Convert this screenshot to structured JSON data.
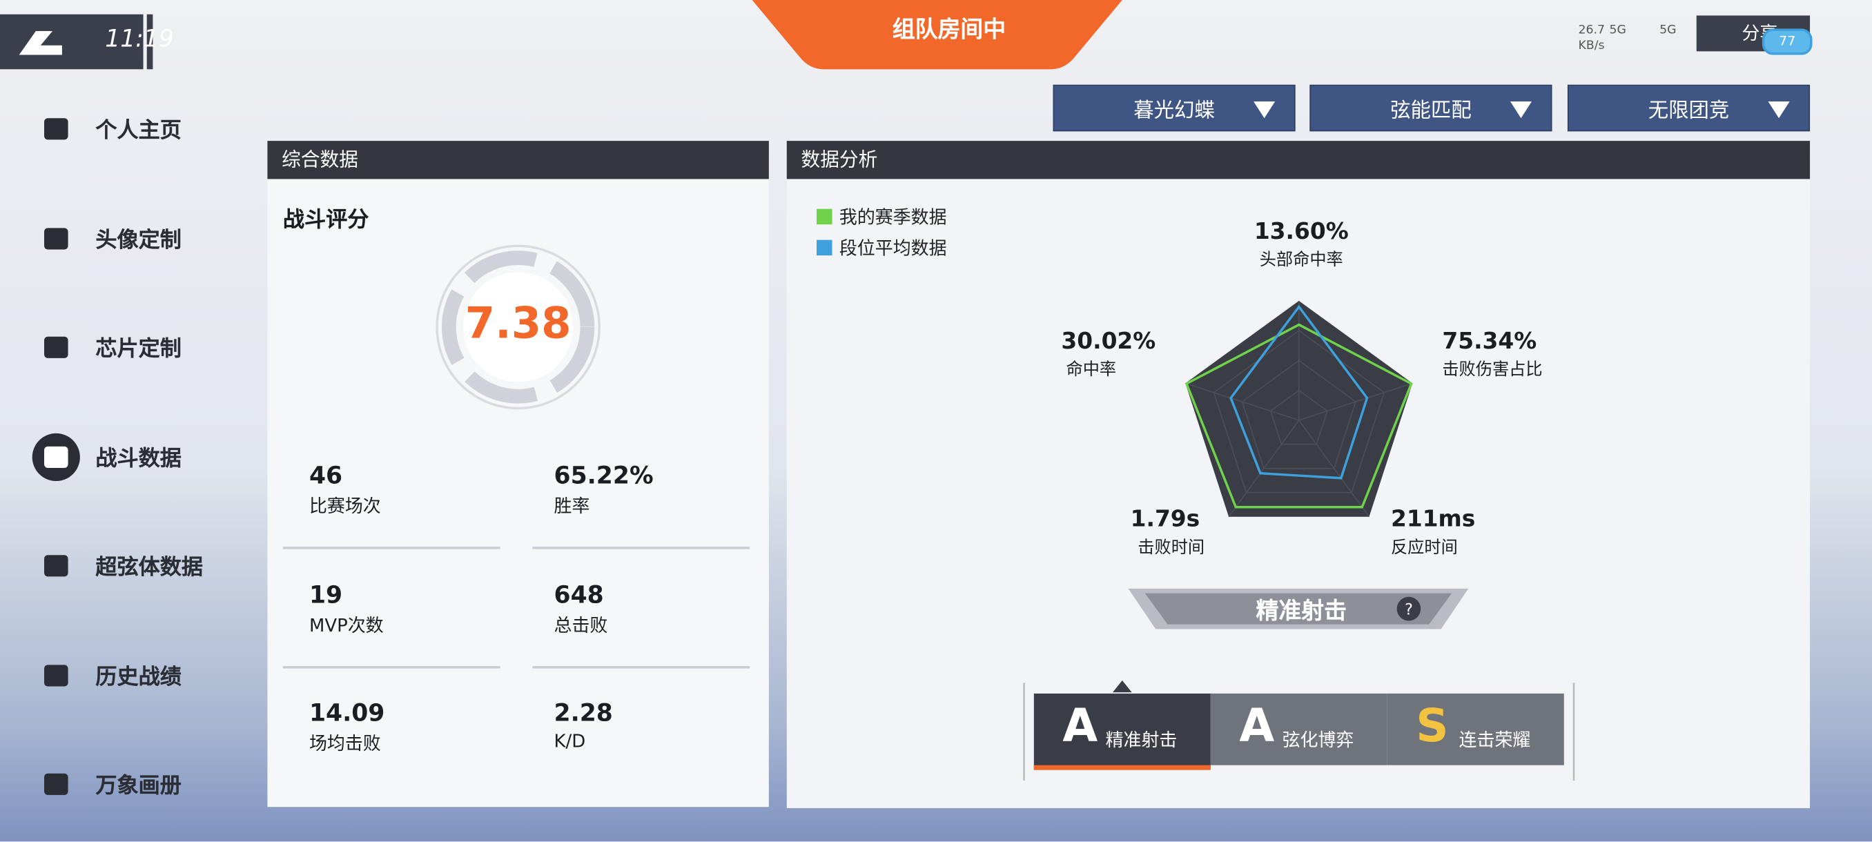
{
  "status_bar": {
    "time": "11:19",
    "net_speed": "26.7",
    "net_unit": "KB/s",
    "signal_1": "5G",
    "signal_2": "5G",
    "share": "分享",
    "battery": "77"
  },
  "banner": "组队房间中",
  "sidebar": [
    "个人主页",
    "头像定制",
    "芯片定制",
    "战斗数据",
    "超弦体数据",
    "历史战绩",
    "万象画册"
  ],
  "filters": [
    "暮光幻蝶",
    "弦能匹配",
    "无限团竞"
  ],
  "overview": {
    "title": "综合数据",
    "score_label": "战斗评分",
    "score": "7.38",
    "stats": [
      {
        "value": "46",
        "label": "比赛场次"
      },
      {
        "value": "65.22%",
        "label": "胜率"
      },
      {
        "value": "19",
        "label": "MVP次数"
      },
      {
        "value": "648",
        "label": "总击败"
      },
      {
        "value": "14.09",
        "label": "场均击败"
      },
      {
        "value": "2.28",
        "label": "K/D"
      }
    ]
  },
  "analysis": {
    "title": "数据分析",
    "style_badge": "精准射击",
    "tiers": [
      {
        "grade": "A",
        "name": "精准射击"
      },
      {
        "grade": "A",
        "name": "弦化博弈"
      },
      {
        "grade": "S",
        "name": "连击荣耀"
      }
    ]
  },
  "chart_data": {
    "type": "radar",
    "categories": [
      "头部命中率",
      "击败伤害占比",
      "反应时间",
      "击败时间",
      "命中率"
    ],
    "axis_values": [
      "13.60%",
      "75.34%",
      "211ms",
      "1.79s",
      "30.02%"
    ],
    "rlim": [
      0,
      1
    ],
    "series": [
      {
        "name": "我的赛季数据",
        "color": "#6fd24a",
        "values": [
          0.8,
          0.99,
          0.9,
          0.9,
          0.99
        ]
      },
      {
        "name": "段位平均数据",
        "color": "#3ea0dc",
        "values": [
          0.95,
          0.6,
          0.6,
          0.55,
          0.6
        ]
      }
    ]
  }
}
